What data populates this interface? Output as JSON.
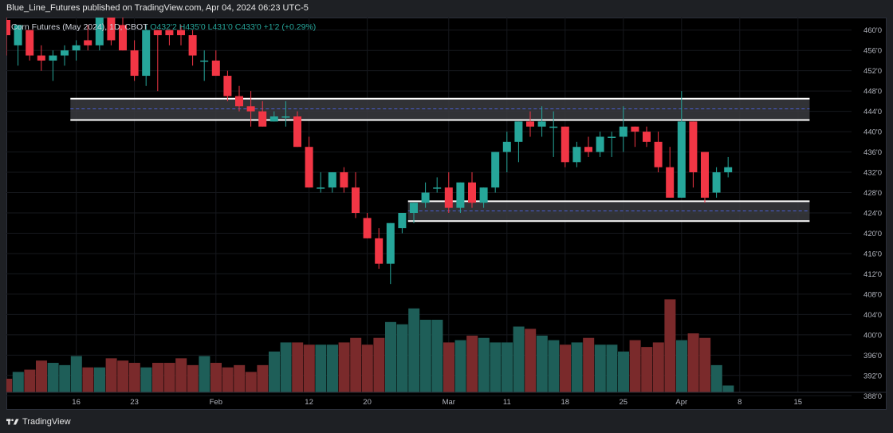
{
  "header": {
    "title": "Blue_Line_Futures published on TradingView.com, Apr 04, 2024 06:23 UTC-5"
  },
  "legend": {
    "symbol": "Corn Futures (May 2024), 1D, CBOT",
    "open": "O432'2",
    "high": "H435'0",
    "low": "L431'0",
    "close": "C433'0",
    "change": "+1'2 (+0.29%)"
  },
  "footer": {
    "brand": "TradingView"
  },
  "colors": {
    "up": "#26a69a",
    "down": "#f23645",
    "vol_up": "#1e5e58",
    "vol_down": "#7a2a2b",
    "zone": "#3a3b3f",
    "zone_line": "#ffffff",
    "zone_mid": "#4a5fd1"
  },
  "chart_data": {
    "type": "candlestick",
    "title": "Corn Futures (May 2024), 1D, CBOT",
    "ylim": [
      386,
      462
    ],
    "yticks": [
      "460'0",
      "456'0",
      "452'0",
      "448'0",
      "444'0",
      "440'0",
      "436'0",
      "432'0",
      "428'0",
      "424'0",
      "420'0",
      "416'0",
      "412'0",
      "408'0",
      "404'0",
      "400'0",
      "396'0",
      "392'0",
      "388'0"
    ],
    "ytick_values": [
      460,
      456,
      452,
      448,
      444,
      440,
      436,
      432,
      428,
      424,
      420,
      416,
      412,
      408,
      404,
      400,
      396,
      392,
      388
    ],
    "xticks": [
      {
        "label": "16",
        "index": 6
      },
      {
        "label": "23",
        "index": 11
      },
      {
        "label": "Feb",
        "index": 18
      },
      {
        "label": "12",
        "index": 26
      },
      {
        "label": "20",
        "index": 31
      },
      {
        "label": "Mar",
        "index": 38
      },
      {
        "label": "11",
        "index": 43
      },
      {
        "label": "18",
        "index": 48
      },
      {
        "label": "25",
        "index": 53
      },
      {
        "label": "Apr",
        "index": 58
      },
      {
        "label": "8",
        "index": 63
      },
      {
        "label": "15",
        "index": 68
      }
    ],
    "zones": [
      {
        "from_index": 6,
        "to_index": 69,
        "top": 446.5,
        "bottom": 442.3,
        "mid": 444.5
      },
      {
        "from_index": 35,
        "to_index": 69,
        "top": 426.3,
        "bottom": 422.4,
        "mid": 424.4
      }
    ],
    "candles": [
      {
        "o": 462,
        "h": 463,
        "l": 455,
        "c": 459
      },
      {
        "o": 457,
        "h": 461,
        "l": 453,
        "c": 461
      },
      {
        "o": 460,
        "h": 460,
        "l": 454,
        "c": 455
      },
      {
        "o": 455,
        "h": 457,
        "l": 452,
        "c": 454
      },
      {
        "o": 454,
        "h": 456,
        "l": 450,
        "c": 455
      },
      {
        "o": 455,
        "h": 457,
        "l": 453,
        "c": 456
      },
      {
        "o": 456,
        "h": 458,
        "l": 454,
        "c": 457
      },
      {
        "o": 458,
        "h": 461,
        "l": 456,
        "c": 457
      },
      {
        "o": 457,
        "h": 463,
        "l": 456,
        "c": 463
      },
      {
        "o": 463,
        "h": 463,
        "l": 457,
        "c": 458
      },
      {
        "o": 461,
        "h": 463,
        "l": 456,
        "c": 456
      },
      {
        "o": 456,
        "h": 458,
        "l": 450,
        "c": 451
      },
      {
        "o": 451,
        "h": 461,
        "l": 449,
        "c": 460
      },
      {
        "o": 460,
        "h": 460,
        "l": 448,
        "c": 459
      },
      {
        "o": 460,
        "h": 460,
        "l": 457,
        "c": 459
      },
      {
        "o": 460,
        "h": 461,
        "l": 457,
        "c": 459
      },
      {
        "o": 459,
        "h": 460,
        "l": 453,
        "c": 455
      },
      {
        "o": 454,
        "h": 456,
        "l": 450,
        "c": 454
      },
      {
        "o": 454,
        "h": 456,
        "l": 451,
        "c": 451
      },
      {
        "o": 451,
        "h": 452,
        "l": 446,
        "c": 447
      },
      {
        "o": 447,
        "h": 449,
        "l": 444,
        "c": 445
      },
      {
        "o": 445,
        "h": 448,
        "l": 441,
        "c": 444
      },
      {
        "o": 444,
        "h": 446,
        "l": 441,
        "c": 441
      },
      {
        "o": 442,
        "h": 444,
        "l": 442,
        "c": 443
      },
      {
        "o": 443,
        "h": 446,
        "l": 441,
        "c": 443
      },
      {
        "o": 443,
        "h": 444,
        "l": 437,
        "c": 437
      },
      {
        "o": 437,
        "h": 439,
        "l": 429,
        "c": 429
      },
      {
        "o": 429,
        "h": 432,
        "l": 428,
        "c": 429
      },
      {
        "o": 429,
        "h": 432,
        "l": 428,
        "c": 432
      },
      {
        "o": 432,
        "h": 433,
        "l": 428,
        "c": 429
      },
      {
        "o": 429,
        "h": 432,
        "l": 423,
        "c": 424
      },
      {
        "o": 423,
        "h": 424,
        "l": 419,
        "c": 419
      },
      {
        "o": 419,
        "h": 421,
        "l": 413,
        "c": 414
      },
      {
        "o": 414,
        "h": 422,
        "l": 410,
        "c": 422
      },
      {
        "o": 421,
        "h": 424,
        "l": 420,
        "c": 424
      },
      {
        "o": 424,
        "h": 426,
        "l": 422,
        "c": 426
      },
      {
        "o": 426,
        "h": 430,
        "l": 425,
        "c": 428
      },
      {
        "o": 429,
        "h": 431,
        "l": 428,
        "c": 429
      },
      {
        "o": 429,
        "h": 432,
        "l": 424,
        "c": 425
      },
      {
        "o": 425,
        "h": 430,
        "l": 424,
        "c": 430
      },
      {
        "o": 430,
        "h": 432,
        "l": 425,
        "c": 426
      },
      {
        "o": 426,
        "h": 429,
        "l": 425,
        "c": 429
      },
      {
        "o": 429,
        "h": 436,
        "l": 428,
        "c": 436
      },
      {
        "o": 436,
        "h": 440,
        "l": 432,
        "c": 438
      },
      {
        "o": 438,
        "h": 442,
        "l": 434,
        "c": 442
      },
      {
        "o": 442,
        "h": 444,
        "l": 439,
        "c": 441
      },
      {
        "o": 441,
        "h": 445,
        "l": 439,
        "c": 442
      },
      {
        "o": 441,
        "h": 444,
        "l": 435,
        "c": 441
      },
      {
        "o": 441,
        "h": 441,
        "l": 433,
        "c": 434
      },
      {
        "o": 434,
        "h": 438,
        "l": 433,
        "c": 437
      },
      {
        "o": 437,
        "h": 439,
        "l": 435,
        "c": 436
      },
      {
        "o": 436,
        "h": 440,
        "l": 435,
        "c": 439
      },
      {
        "o": 439,
        "h": 440,
        "l": 435,
        "c": 439
      },
      {
        "o": 439,
        "h": 445,
        "l": 436,
        "c": 441
      },
      {
        "o": 441,
        "h": 441,
        "l": 437,
        "c": 440
      },
      {
        "o": 440,
        "h": 441,
        "l": 437,
        "c": 438
      },
      {
        "o": 438,
        "h": 440,
        "l": 432,
        "c": 433
      },
      {
        "o": 433,
        "h": 437,
        "l": 427,
        "c": 427
      },
      {
        "o": 427,
        "h": 448,
        "l": 427,
        "c": 442
      },
      {
        "o": 442,
        "h": 442,
        "l": 429,
        "c": 432
      },
      {
        "o": 436,
        "h": 436,
        "l": 426,
        "c": 427
      },
      {
        "o": 428,
        "h": 433,
        "l": 427,
        "c": 432
      },
      {
        "o": 432,
        "h": 435,
        "l": 431,
        "c": 433
      }
    ],
    "volume": [
      6,
      9,
      10,
      14,
      13,
      12,
      16,
      11,
      11,
      15,
      14,
      13,
      11,
      13,
      13,
      15,
      12,
      16,
      13,
      11,
      12,
      9,
      12,
      18,
      22,
      22,
      21,
      21,
      21,
      22,
      24,
      21,
      24,
      31,
      30,
      37,
      32,
      32,
      22,
      23,
      25,
      24,
      22,
      22,
      29,
      28,
      25,
      23,
      21,
      22,
      24,
      21,
      21,
      18,
      23,
      20,
      22,
      41,
      23,
      26,
      24,
      12,
      3
    ],
    "volume_ymax": 45
  }
}
